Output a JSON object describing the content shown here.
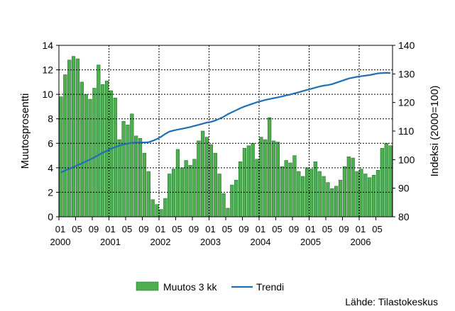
{
  "chart_data": {
    "type": "bar",
    "ylabel": "Muutosprosentti",
    "y2label": "Indeksi (2000=100)",
    "ylim": [
      0,
      14
    ],
    "y2lim": [
      80,
      140
    ],
    "yticks": [
      "0",
      "2",
      "4",
      "6",
      "8",
      "10",
      "12",
      "14"
    ],
    "y2ticks": [
      "80",
      "90",
      "100",
      "110",
      "120",
      "130",
      "140"
    ],
    "x_month_labels": [
      "01",
      "05",
      "09",
      "01",
      "05",
      "09",
      "01",
      "05",
      "09",
      "01",
      "05",
      "09",
      "01",
      "05",
      "09",
      "01",
      "05",
      "09",
      "01",
      "05"
    ],
    "x_year_labels": [
      "2000",
      "2001",
      "2002",
      "2003",
      "2004",
      "2005",
      "2006"
    ],
    "grid": true,
    "legend_position": "bottom",
    "source": "Lähde: Tilastokeskus",
    "colors": {
      "bars": "#4caf50",
      "bar_edge": "#1b5e20",
      "trend": "#1f6fb5",
      "grid": "#000000"
    },
    "series": [
      {
        "name": "Muutos 3 kk",
        "type": "bar",
        "axis": "left",
        "values": [
          9.8,
          11.6,
          12.8,
          13.1,
          12.9,
          11.0,
          10.0,
          9.6,
          10.5,
          12.4,
          10.8,
          11.1,
          10.3,
          9.7,
          6.3,
          7.8,
          7.5,
          8.4,
          6.6,
          6.4,
          5.2,
          3.7,
          1.4,
          1.0,
          0.6,
          1.5,
          3.5,
          3.9,
          5.5,
          4.0,
          4.6,
          4.2,
          4.7,
          6.2,
          7.0,
          6.5,
          5.9,
          5.2,
          3.5,
          1.9,
          0.7,
          2.6,
          3.0,
          4.5,
          5.6,
          5.8,
          6.0,
          4.7,
          6.5,
          6.3,
          8.1,
          6.2,
          6.1,
          4.1,
          4.6,
          4.4,
          5.0,
          3.7,
          3.3,
          4.0,
          3.9,
          4.5,
          3.7,
          3.3,
          2.8,
          2.3,
          2.5,
          3.0,
          4.1,
          4.9,
          4.8,
          3.7,
          3.9,
          3.5,
          3.2,
          3.4,
          3.8,
          5.6,
          6.0,
          5.8
        ]
      },
      {
        "name": "Trendi",
        "type": "line",
        "axis": "right",
        "values": [
          95.5,
          96.2,
          96.8,
          97.4,
          98.1,
          98.7,
          99.4,
          100.1,
          100.8,
          101.6,
          102.4,
          103.1,
          103.8,
          104.4,
          104.9,
          105.3,
          105.6,
          105.9,
          106.0,
          106.0,
          106.0,
          106.1,
          106.6,
          107.2,
          108.0,
          109.0,
          109.8,
          110.2,
          110.5,
          110.8,
          111.1,
          111.4,
          111.8,
          112.2,
          112.6,
          113.0,
          113.2,
          113.7,
          114.3,
          115.0,
          115.9,
          116.6,
          117.3,
          118.0,
          118.6,
          119.1,
          119.6,
          120.1,
          120.5,
          120.9,
          121.2,
          121.5,
          121.8,
          122.1,
          122.5,
          122.8,
          123.2,
          123.6,
          124.0,
          124.4,
          124.8,
          125.2,
          125.6,
          125.9,
          126.1,
          126.4,
          126.9,
          127.4,
          127.9,
          128.4,
          128.7,
          129.0,
          129.2,
          129.4,
          129.6,
          129.9,
          130.2,
          130.3,
          130.4,
          130.3
        ]
      }
    ]
  }
}
